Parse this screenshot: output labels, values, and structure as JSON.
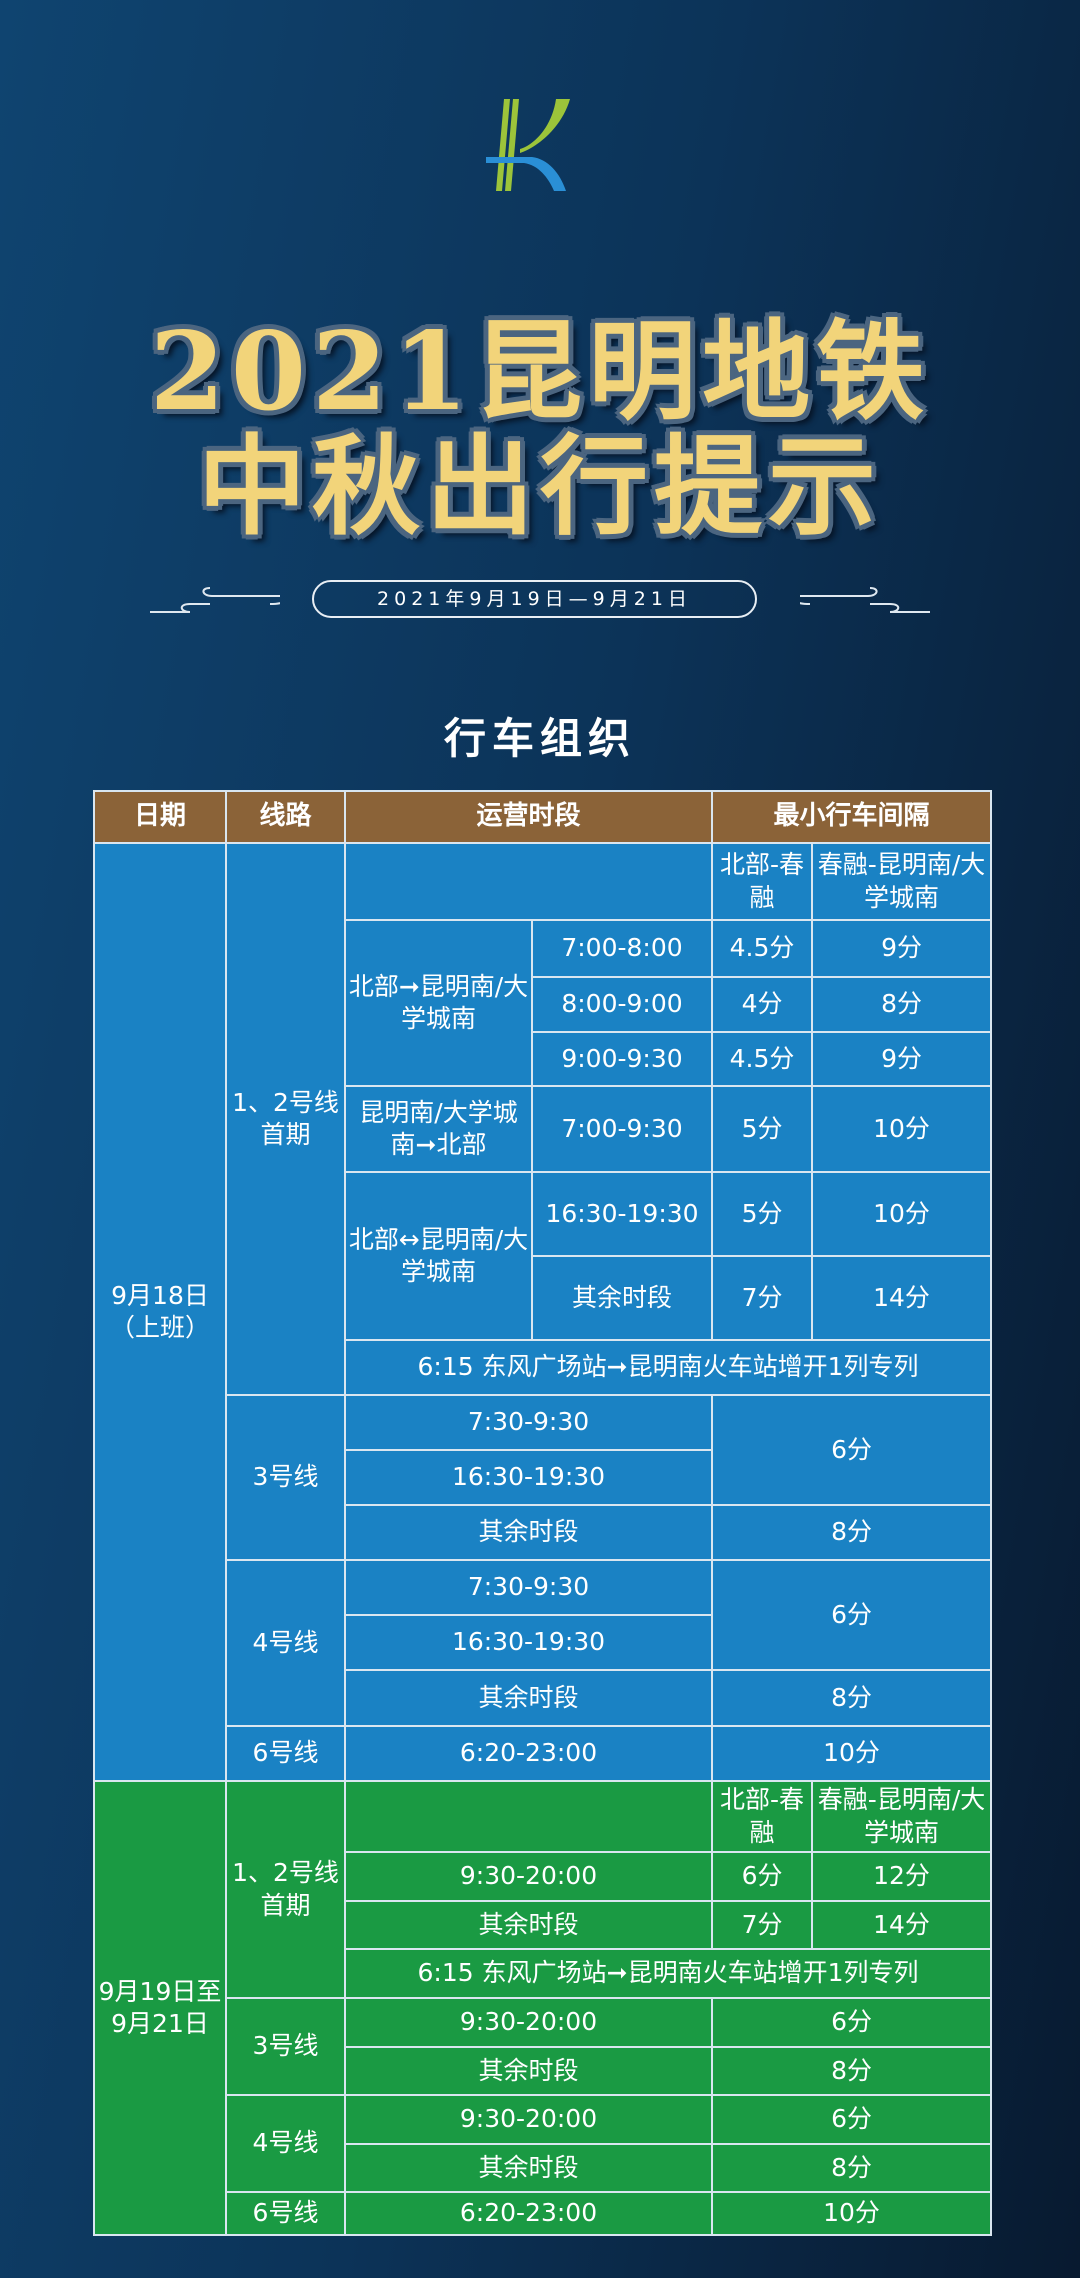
{
  "logo": {
    "colors": {
      "green": "#9cc43a",
      "blue": "#2a8fd6"
    }
  },
  "title": {
    "line1": "2021昆明地铁",
    "line2": "中秋出行提示",
    "date_range": "2021年9月19日—9月21日",
    "section": "行车组织"
  },
  "table": {
    "headers": [
      "日期",
      "线路",
      "运营时段",
      "最小行车间隔"
    ],
    "sub_headers": [
      "北部-春融",
      "春融-昆明南/大学城南"
    ],
    "workday": {
      "date": "9月18日（上班）",
      "line12": {
        "name": "1、2号线首期",
        "dir1": "北部➞昆明南/大学城南",
        "dir1_rows": [
          [
            "7:00-8:00",
            "4.5分",
            "9分"
          ],
          [
            "8:00-9:00",
            "4分",
            "8分"
          ],
          [
            "9:00-9:30",
            "4.5分",
            "9分"
          ]
        ],
        "dir2": "昆明南/大学城南➞北部",
        "dir2_row": [
          "7:00-9:30",
          "5分",
          "10分"
        ],
        "dir3": "北部↔昆明南/大学城南",
        "dir3_rows": [
          [
            "16:30-19:30",
            "5分",
            "10分"
          ],
          [
            "其余时段",
            "7分",
            "14分"
          ]
        ],
        "note": "6:15 东风广场站➞昆明南火车站增开1列专列"
      },
      "line3": {
        "name": "3号线",
        "periods": [
          "7:30-9:30",
          "16:30-19:30",
          "其余时段"
        ],
        "peak": "6分",
        "other": "8分"
      },
      "line4": {
        "name": "4号线",
        "periods": [
          "7:30-9:30",
          "16:30-19:30",
          "其余时段"
        ],
        "peak": "6分",
        "other": "8分"
      },
      "line6": {
        "name": "6号线",
        "period": "6:20-23:00",
        "interval": "10分"
      }
    },
    "holiday": {
      "date": "9月19日至9月21日",
      "line12": {
        "name": "1、2号线首期",
        "rows": [
          [
            "9:30-20:00",
            "6分",
            "12分"
          ],
          [
            "其余时段",
            "7分",
            "14分"
          ]
        ],
        "note": "6:15 东风广场站➞昆明南火车站增开1列专列"
      },
      "line3": {
        "name": "3号线",
        "rows": [
          [
            "9:30-20:00",
            "6分"
          ],
          [
            "其余时段",
            "8分"
          ]
        ]
      },
      "line4": {
        "name": "4号线",
        "rows": [
          [
            "9:30-20:00",
            "6分"
          ],
          [
            "其余时段",
            "8分"
          ]
        ]
      },
      "line6": {
        "name": "6号线",
        "period": "6:20-23:00",
        "interval": "10分"
      }
    }
  },
  "colors": {
    "header": "#8b6338",
    "workday": "#1a82c4",
    "holiday": "#1a9a43",
    "title": "#f2d47a"
  }
}
